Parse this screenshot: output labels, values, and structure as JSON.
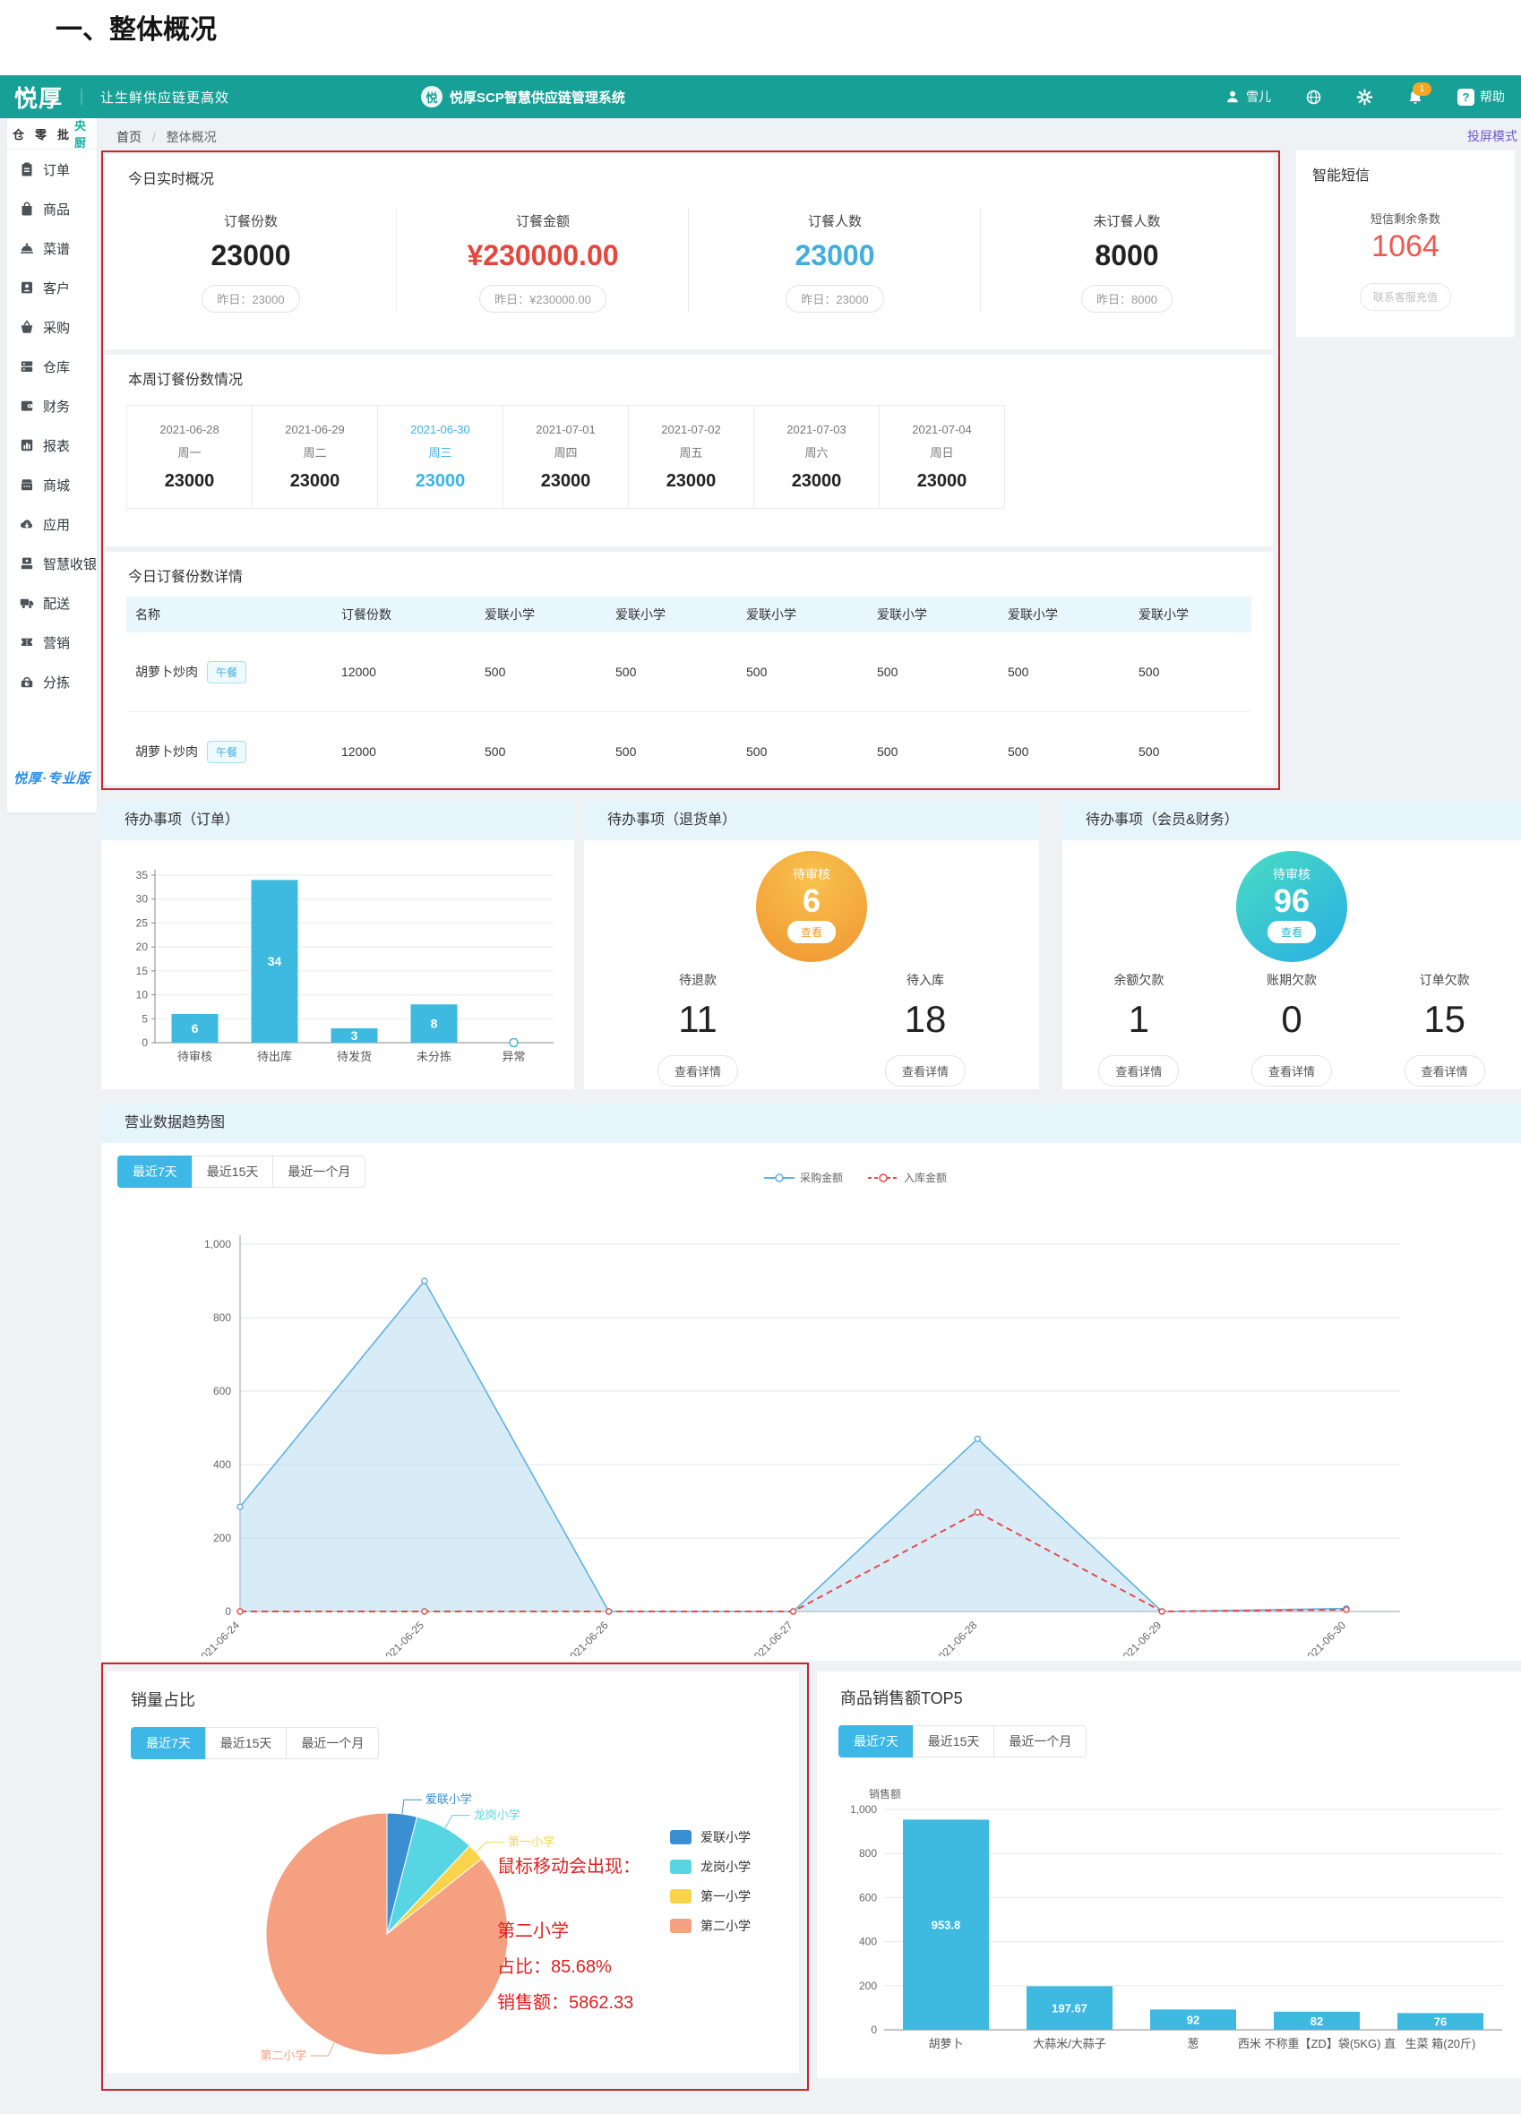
{
  "page": {
    "title": "一、整体概况",
    "screencast_mode": "投屏模式"
  },
  "header": {
    "brand": "悦厚",
    "divider": "｜",
    "tagline": "让生鲜供应链更高效",
    "logo_glyph": "悦",
    "system_name": "悦厚SCP智慧供应链管理系统",
    "user": "雪儿",
    "notification_count": "1",
    "help_glyph": "?",
    "help": "帮助"
  },
  "sidebar": {
    "tabs": [
      "仓",
      "零",
      "批",
      "央厨"
    ],
    "active_tab": "央厨",
    "items": [
      {
        "label": "订单",
        "icon": "clipboard"
      },
      {
        "label": "商品",
        "icon": "bag"
      },
      {
        "label": "菜谱",
        "icon": "cloche"
      },
      {
        "label": "客户",
        "icon": "contact"
      },
      {
        "label": "采购",
        "icon": "basket"
      },
      {
        "label": "仓库",
        "icon": "warehouse"
      },
      {
        "label": "财务",
        "icon": "wallet"
      },
      {
        "label": "报表",
        "icon": "report"
      },
      {
        "label": "商城",
        "icon": "store"
      },
      {
        "label": "应用",
        "icon": "cloud"
      },
      {
        "label": "智慧收银",
        "icon": "cashier"
      },
      {
        "label": "配送",
        "icon": "truck"
      },
      {
        "label": "营销",
        "icon": "ticket"
      },
      {
        "label": "分拣",
        "icon": "scale"
      }
    ],
    "edition": "悦厚·专业版"
  },
  "breadcrumb": {
    "home": "首页",
    "separator": "/",
    "current": "整体概况"
  },
  "today_overview": {
    "title": "今日实时概况",
    "stats": [
      {
        "label": "订餐份数",
        "value": "23000",
        "yesterday": "昨日：23000",
        "tone": "dark"
      },
      {
        "label": "订餐金额",
        "value": "¥230000.00",
        "yesterday": "昨日：¥230000.00",
        "tone": "red"
      },
      {
        "label": "订餐人数",
        "value": "23000",
        "yesterday": "昨日：23000",
        "tone": "blue"
      },
      {
        "label": "未订餐人数",
        "value": "8000",
        "yesterday": "昨日：8000",
        "tone": "dark"
      }
    ]
  },
  "sms_panel": {
    "title": "智能短信",
    "label": "短信剩余条数",
    "value": "1064",
    "button": "联系客服充值"
  },
  "week_panel": {
    "title": "本周订餐份数情况",
    "days": [
      {
        "date": "2021-06-28",
        "weekday": "周一",
        "value": "23000",
        "active": false
      },
      {
        "date": "2021-06-29",
        "weekday": "周二",
        "value": "23000",
        "active": false
      },
      {
        "date": "2021-06-30",
        "weekday": "周三",
        "value": "23000",
        "active": true
      },
      {
        "date": "2021-07-01",
        "weekday": "周四",
        "value": "23000",
        "active": false
      },
      {
        "date": "2021-07-02",
        "weekday": "周五",
        "value": "23000",
        "active": false
      },
      {
        "date": "2021-07-03",
        "weekday": "周六",
        "value": "23000",
        "active": false
      },
      {
        "date": "2021-07-04",
        "weekday": "周日",
        "value": "23000",
        "active": false
      }
    ]
  },
  "detail_panel": {
    "title": "今日订餐份数详情",
    "columns": [
      "名称",
      "订餐份数",
      "爱联小学",
      "爱联小学",
      "爱联小学",
      "爱联小学",
      "爱联小学",
      "爱联小学"
    ],
    "rows": [
      {
        "name": "胡萝卜炒肉",
        "tag": "午餐",
        "values": [
          "12000",
          "500",
          "500",
          "500",
          "500",
          "500",
          "500"
        ]
      },
      {
        "name": "胡萝卜炒肉",
        "tag": "午餐",
        "values": [
          "12000",
          "500",
          "500",
          "500",
          "500",
          "500",
          "500"
        ]
      }
    ]
  },
  "todo_order": {
    "title": "待办事项（订单）",
    "chart_data": {
      "type": "bar",
      "categories": [
        "待审核",
        "待出库",
        "待发货",
        "未分拣",
        "异常"
      ],
      "values": [
        6,
        34,
        3,
        8,
        0
      ],
      "ylim": [
        0,
        35
      ],
      "yticks": [
        0,
        5,
        10,
        15,
        20,
        25,
        30,
        35
      ],
      "color": "#3eb9e0"
    }
  },
  "todo_return": {
    "title": "待办事项（退货单）",
    "circle": {
      "label": "待审核",
      "value": "6",
      "button": "查看"
    },
    "stats": [
      {
        "label": "待退款",
        "value": "11",
        "button": "查看详情"
      },
      {
        "label": "待入库",
        "value": "18",
        "button": "查看详情"
      }
    ]
  },
  "todo_member": {
    "title": "待办事项（会员&财务）",
    "circle": {
      "label": "待审核",
      "value": "96",
      "button": "查看"
    },
    "stats": [
      {
        "label": "余额欠款",
        "value": "1",
        "button": "查看详情"
      },
      {
        "label": "账期欠款",
        "value": "0",
        "button": "查看详情"
      },
      {
        "label": "订单欠款",
        "value": "15",
        "button": "查看详情"
      }
    ]
  },
  "trend_panel": {
    "title": "营业数据趋势图",
    "tabs": [
      "最近7天",
      "最近15天",
      "最近一个月"
    ],
    "active_tab": "最近7天",
    "chart_data": {
      "type": "line",
      "x": [
        "2021-06-24",
        "2021-06-25",
        "2021-06-26",
        "2021-06-27",
        "2021-06-28",
        "2021-06-29",
        "2021-06-30"
      ],
      "series": [
        {
          "name": "采购金额",
          "color": "#5fb0e0",
          "style": "solid-area",
          "values": [
            285,
            900,
            0,
            0,
            470,
            0,
            8
          ]
        },
        {
          "name": "入库金额",
          "color": "#e9494b",
          "style": "dashed",
          "values": [
            0,
            0,
            0,
            0,
            270,
            0,
            5
          ]
        }
      ],
      "ylim": [
        0,
        1000
      ],
      "yticks": [
        0,
        200,
        400,
        600,
        800,
        1000
      ],
      "legend_position": "top"
    }
  },
  "pie_panel": {
    "title": "销量占比",
    "tabs": [
      "最近7天",
      "最近15天",
      "最近一个月"
    ],
    "active_tab": "最近7天",
    "chart_data": {
      "type": "pie",
      "slices": [
        {
          "label": "爱联小学",
          "value": 4.0,
          "color": "#3a8fd2"
        },
        {
          "label": "龙岗小学",
          "value": 8.0,
          "color": "#58d5e2"
        },
        {
          "label": "第一小学",
          "value": 2.32,
          "color": "#f8d34b"
        },
        {
          "label": "第二小学",
          "value": 85.68,
          "color": "#f5a081"
        }
      ]
    },
    "tooltip_note": {
      "line1": "鼠标移动会出现：",
      "name": "第二小学",
      "share": "占比：85.68%",
      "sales": "销售额：5862.33"
    }
  },
  "top5_panel": {
    "title": "商品销售额TOP5",
    "tabs": [
      "最近7天",
      "最近15天",
      "最近一个月"
    ],
    "active_tab": "最近7天",
    "ylabel": "销售额",
    "chart_data": {
      "type": "bar",
      "categories": [
        "胡萝卜",
        "大蒜米/大蒜子",
        "葱",
        "西米 不称重【ZD】袋(5KG) 直",
        "生菜 箱(20斤)"
      ],
      "values": [
        953.8,
        197.67,
        92,
        82,
        76
      ],
      "ylim": [
        0,
        1000
      ],
      "yticks": [
        0,
        200,
        400,
        600,
        800,
        1000
      ],
      "ylabel": "销售额",
      "color": "#3eb9e0"
    }
  },
  "colors": {
    "primary_teal": "#17a096",
    "accent_blue": "#3cb7e6",
    "danger_red": "#e5463d",
    "annotation_red": "#c9252d",
    "bar_cyan": "#3eb9e0",
    "orange_badge": "#ef9530",
    "teal_badge": "#2fb9c9"
  }
}
